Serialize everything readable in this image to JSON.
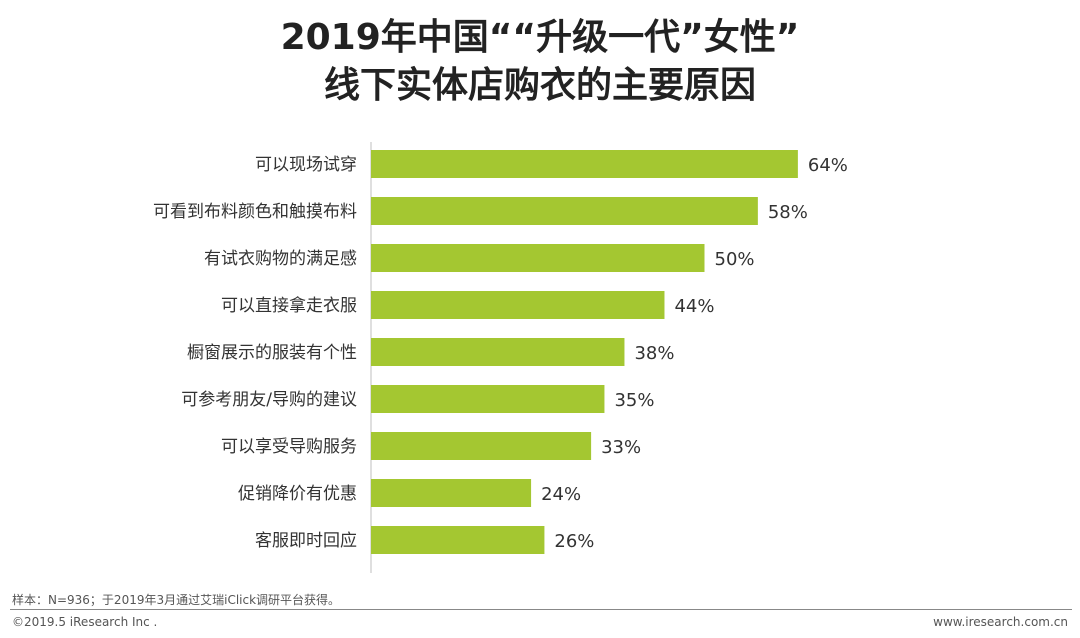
{
  "title": {
    "line1": "2019年中国““升级一代”女性”",
    "line2": "线下实体店购衣的主要原因"
  },
  "chart_data": {
    "type": "bar",
    "orientation": "horizontal",
    "title": "2019年中国““升级一代”女性”线下实体店购衣的主要原因",
    "categories": [
      "可以现场试穿",
      "可看到布料颜色和触摸布料",
      "有试衣购物的满足感",
      "可以直接拿走衣服",
      "橱窗展示的服装有个性",
      "可参考朋友/导购的建议",
      "可以享受导购服务",
      "促销降价有优惠",
      "客服即时回应"
    ],
    "values": [
      64,
      58,
      50,
      44,
      38,
      35,
      33,
      24,
      26
    ],
    "value_suffix": "%",
    "bar_color": "#A4C731",
    "xlim": [
      0,
      100
    ],
    "xlabel": "",
    "ylabel": ""
  },
  "footer": {
    "note": "样本：N=936；于2019年3月通过艾瑞iClick调研平台获得。",
    "copyright": "©2019.5 iResearch Inc .",
    "website": "www.iresearch.com.cn"
  }
}
